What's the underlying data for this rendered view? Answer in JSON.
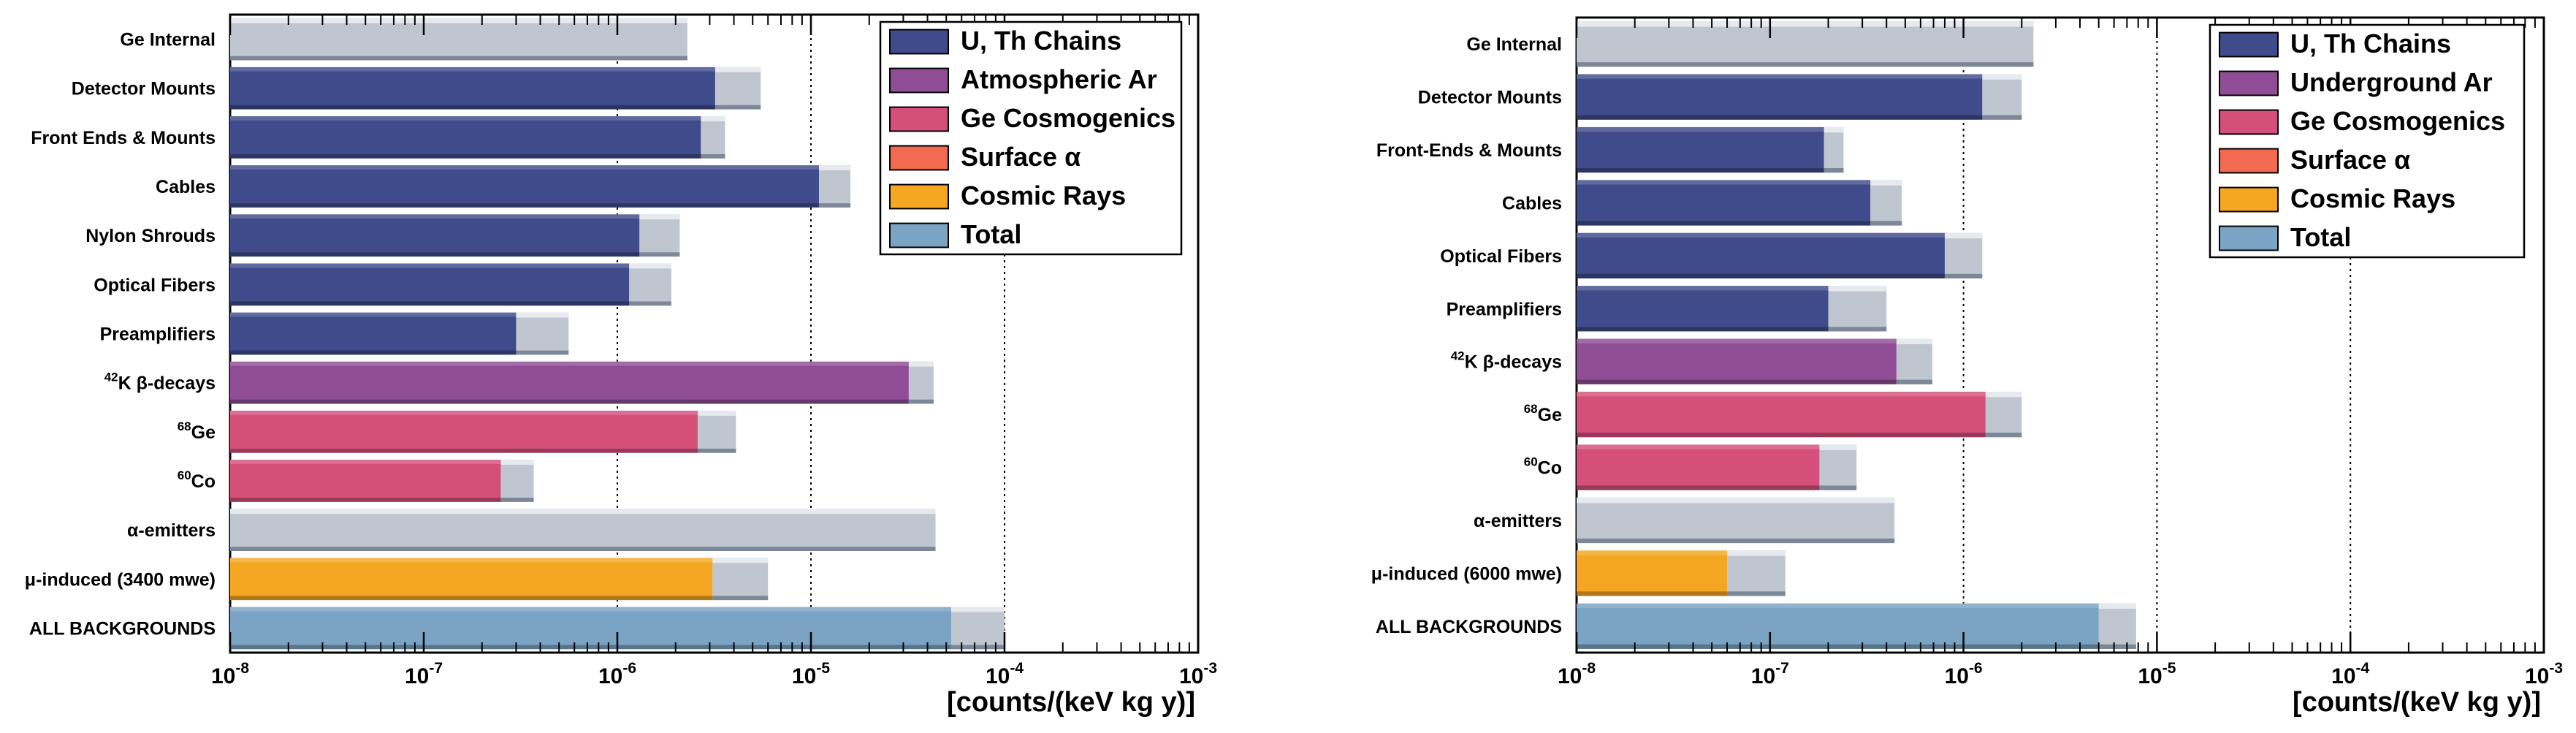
{
  "colors": {
    "u_th": "#3f4b8a",
    "ar": "#8e4d94",
    "ge_cosmo": "#d4507a",
    "surface_alpha": "#f26a50",
    "cosmic": "#f5a623",
    "total": "#7aa3c4",
    "uncert": "#c0c6cf",
    "frame": "#000000"
  },
  "chart_data": [
    {
      "type": "bar",
      "orientation": "horizontal",
      "xscale": "log",
      "xlim": [
        1e-08,
        0.001
      ],
      "xlabel": "[counts/(keV kg y)]",
      "xticks": [
        {
          "exp": "-8",
          "value": 1e-08
        },
        {
          "exp": "-7",
          "value": 1e-07
        },
        {
          "exp": "-6",
          "value": 1e-06
        },
        {
          "exp": "-5",
          "value": 1e-05
        },
        {
          "exp": "-4",
          "value": 0.0001
        },
        {
          "exp": "-3",
          "value": 0.001
        }
      ],
      "vlines": [
        1e-06,
        1e-05,
        0.0001
      ],
      "legend": [
        {
          "label": "U, Th Chains",
          "color": "#3f4b8a"
        },
        {
          "label": "Atmospheric Ar",
          "color": "#8e4d94"
        },
        {
          "label": "Ge Cosmogenics",
          "color": "#d4507a"
        },
        {
          "label": "Surface α",
          "color": "#f26a50"
        },
        {
          "label": "Cosmic Rays",
          "color": "#f5a623"
        },
        {
          "label": "Total",
          "color": "#7aa3c4"
        }
      ],
      "bars": [
        {
          "category": "Ge Internal",
          "sup": "",
          "value": 1e-08,
          "upper": 2.3e-06,
          "color": "#3f4b8a"
        },
        {
          "category": "Detector Mounts",
          "sup": "",
          "value": 3.2e-06,
          "upper": 5.5e-06,
          "color": "#3f4b8a"
        },
        {
          "category": "Front Ends & Mounts",
          "sup": "",
          "value": 2.7e-06,
          "upper": 3.6e-06,
          "color": "#3f4b8a"
        },
        {
          "category": "Cables",
          "sup": "",
          "value": 1.1e-05,
          "upper": 1.6e-05,
          "color": "#3f4b8a"
        },
        {
          "category": "Nylon Shrouds",
          "sup": "",
          "value": 1.3e-06,
          "upper": 2.1e-06,
          "color": "#3f4b8a"
        },
        {
          "category": "Optical Fibers",
          "sup": "",
          "value": 1.15e-06,
          "upper": 1.9e-06,
          "color": "#3f4b8a"
        },
        {
          "category": "Preamplifiers",
          "sup": "",
          "value": 3e-07,
          "upper": 5.6e-07,
          "color": "#3f4b8a"
        },
        {
          "category": "K  β-decays",
          "sup": "42",
          "value": 3.2e-05,
          "upper": 4.3e-05,
          "color": "#8e4d94"
        },
        {
          "category": "Ge",
          "sup": "68",
          "value": 2.6e-06,
          "upper": 4.1e-06,
          "color": "#d4507a"
        },
        {
          "category": "Co",
          "sup": "60",
          "value": 2.5e-07,
          "upper": 3.7e-07,
          "color": "#d4507a"
        },
        {
          "category": "α-emitters",
          "sup": "",
          "value": 1e-08,
          "upper": 4.4e-05,
          "color": "#3f4b8a"
        },
        {
          "category": "μ-induced (3400 mwe)",
          "sup": "",
          "value": 3.1e-06,
          "upper": 6e-06,
          "color": "#f5a623"
        },
        {
          "category": "ALL BACKGROUNDS",
          "sup": "",
          "value": 5.3e-05,
          "upper": 0.0001,
          "color": "#7aa3c4"
        }
      ]
    },
    {
      "type": "bar",
      "orientation": "horizontal",
      "xscale": "log",
      "xlim": [
        1e-08,
        0.001
      ],
      "xlabel": "[counts/(keV kg y)]",
      "xticks": [
        {
          "exp": "-8",
          "value": 1e-08
        },
        {
          "exp": "-7",
          "value": 1e-07
        },
        {
          "exp": "-6",
          "value": 1e-06
        },
        {
          "exp": "-5",
          "value": 1e-05
        },
        {
          "exp": "-4",
          "value": 0.0001
        },
        {
          "exp": "-3",
          "value": 0.001
        }
      ],
      "vlines": [
        1e-06,
        1e-05,
        0.0001
      ],
      "legend": [
        {
          "label": "U, Th Chains",
          "color": "#3f4b8a"
        },
        {
          "label": "Underground Ar",
          "color": "#8e4d94"
        },
        {
          "label": "Ge Cosmogenics",
          "color": "#d4507a"
        },
        {
          "label": "Surface α",
          "color": "#f26a50"
        },
        {
          "label": "Cosmic Rays",
          "color": "#f5a623"
        },
        {
          "label": "Total",
          "color": "#7aa3c4"
        }
      ],
      "bars": [
        {
          "category": "Ge Internal",
          "sup": "",
          "value": 1e-08,
          "upper": 2.3e-06,
          "color": "#3f4b8a"
        },
        {
          "category": "Detector Mounts",
          "sup": "",
          "value": 1.25e-06,
          "upper": 2e-06,
          "color": "#3f4b8a"
        },
        {
          "category": "Front-Ends & Mounts",
          "sup": "",
          "value": 1.9e-07,
          "upper": 2.4e-07,
          "color": "#3f4b8a"
        },
        {
          "category": "Cables",
          "sup": "",
          "value": 3.3e-07,
          "upper": 4.8e-07,
          "color": "#3f4b8a"
        },
        {
          "category": "Optical Fibers",
          "sup": "",
          "value": 8e-07,
          "upper": 1.25e-06,
          "color": "#3f4b8a"
        },
        {
          "category": "Preamplifiers",
          "sup": "",
          "value": 2e-07,
          "upper": 4e-07,
          "color": "#3f4b8a"
        },
        {
          "category": "K  β-decays",
          "sup": "42",
          "value": 4.5e-07,
          "upper": 6.9e-07,
          "color": "#8e4d94"
        },
        {
          "category": "Ge",
          "sup": "68",
          "value": 1.3e-06,
          "upper": 2e-06,
          "color": "#d4507a"
        },
        {
          "category": "Co",
          "sup": "60",
          "value": 1.8e-07,
          "upper": 2.8e-07,
          "color": "#d4507a"
        },
        {
          "category": "α-emitters",
          "sup": "",
          "value": 1e-08,
          "upper": 4.4e-07,
          "color": "#3f4b8a"
        },
        {
          "category": "μ-induced (6000 mwe)",
          "sup": "",
          "value": 6e-08,
          "upper": 1.2e-07,
          "color": "#f5a623"
        },
        {
          "category": "ALL BACKGROUNDS",
          "sup": "",
          "value": 5e-06,
          "upper": 7.8e-06,
          "color": "#7aa3c4"
        }
      ]
    }
  ]
}
